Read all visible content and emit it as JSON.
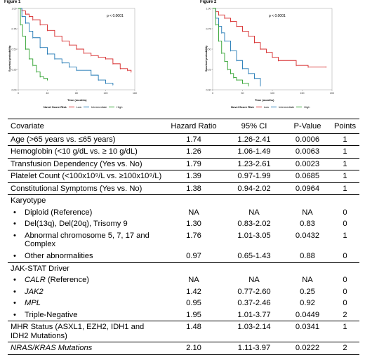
{
  "figures": [
    {
      "title": "Figure 1",
      "p_value": "p < 0.0001",
      "ylabel": "Survival probability",
      "xlabel": "Time (months)",
      "legend_title": "Novel Score Risk",
      "legend": [
        "Low",
        "Intermediate",
        "High"
      ]
    },
    {
      "title": "Figure 2",
      "p_value": "p < 0.0001",
      "ylabel": "Survival probability",
      "xlabel": "Time (months)",
      "legend_title": "Novel Score Risk",
      "legend": [
        "Low",
        "Intermediate",
        "High"
      ]
    }
  ],
  "chart_data": [
    {
      "type": "line",
      "title": "Figure 1",
      "xlabel": "Time (months)",
      "ylabel": "Survival probability",
      "xlim": [
        0,
        160
      ],
      "ylim": [
        0,
        1
      ],
      "x_ticks": [
        "0",
        "40",
        "80",
        "120",
        "160"
      ],
      "y_ticks": [
        "0.00",
        "0.25",
        "0.50",
        "0.75",
        "1.00"
      ],
      "series": [
        {
          "name": "Low",
          "color": "#d62728",
          "x": [
            0,
            5,
            10,
            15,
            20,
            30,
            40,
            50,
            60,
            70,
            80,
            90,
            100,
            110,
            120,
            130,
            140,
            150,
            155
          ],
          "y": [
            1.0,
            0.97,
            0.93,
            0.9,
            0.86,
            0.8,
            0.73,
            0.66,
            0.6,
            0.55,
            0.5,
            0.45,
            0.42,
            0.4,
            0.38,
            0.32,
            0.26,
            0.24,
            0.22
          ]
        },
        {
          "name": "Intermediate",
          "color": "#1f77b4",
          "x": [
            0,
            5,
            10,
            15,
            20,
            30,
            40,
            50,
            60,
            70,
            80,
            100,
            110,
            120,
            130
          ],
          "y": [
            1.0,
            0.9,
            0.82,
            0.72,
            0.64,
            0.52,
            0.44,
            0.38,
            0.33,
            0.28,
            0.24,
            0.18,
            0.12,
            0.08,
            0.06
          ]
        },
        {
          "name": "High",
          "color": "#2ca02c",
          "x": [
            0,
            3,
            6,
            10,
            15,
            20,
            25,
            30,
            35,
            40
          ],
          "y": [
            1.0,
            0.8,
            0.66,
            0.5,
            0.38,
            0.3,
            0.22,
            0.16,
            0.14,
            0.12
          ]
        }
      ]
    },
    {
      "type": "line",
      "title": "Figure 2",
      "xlabel": "Time (months)",
      "ylabel": "Survival probability",
      "xlim": [
        0,
        200
      ],
      "ylim": [
        0,
        1
      ],
      "x_ticks": [
        "0",
        "50",
        "100",
        "150",
        "200"
      ],
      "y_ticks": [
        "0.00",
        "0.25",
        "0.50",
        "0.75",
        "1.00"
      ],
      "series": [
        {
          "name": "Low",
          "color": "#d62728",
          "x": [
            0,
            5,
            10,
            20,
            30,
            40,
            50,
            60,
            70,
            80,
            90,
            100,
            110,
            140,
            160,
            190
          ],
          "y": [
            1.0,
            0.96,
            0.92,
            0.88,
            0.84,
            0.78,
            0.72,
            0.66,
            0.58,
            0.5,
            0.46,
            0.4,
            0.36,
            0.3,
            0.28,
            0.28
          ]
        },
        {
          "name": "Intermediate",
          "color": "#1f77b4",
          "x": [
            0,
            5,
            10,
            15,
            20,
            30,
            40,
            50,
            60,
            70,
            80
          ],
          "y": [
            1.0,
            0.88,
            0.78,
            0.7,
            0.6,
            0.48,
            0.36,
            0.26,
            0.2,
            0.14,
            0.05
          ]
        },
        {
          "name": "High",
          "color": "#2ca02c",
          "x": [
            0,
            5,
            10,
            15,
            20,
            25,
            30,
            35,
            40,
            50,
            60
          ],
          "y": [
            1.0,
            0.8,
            0.6,
            0.45,
            0.35,
            0.25,
            0.2,
            0.15,
            0.12,
            0.08,
            0.05
          ]
        }
      ]
    },
    {
      "type": "table",
      "columns": [
        "Covariate",
        "Hazard Ratio",
        "95% CI",
        "P-Value",
        "Points"
      ],
      "rows": [
        {
          "kind": "main",
          "label": "Age (>65 years vs. ≤65 years)",
          "hr": "1.74",
          "ci": "1.26-2.41",
          "p": "0.0006",
          "pts": "1"
        },
        {
          "kind": "main",
          "label": "Hemoglobin (<10 g/dL vs. ≥ 10 g/dL)",
          "hr": "1.26",
          "ci": "1.06-1.49",
          "p": "0.0063",
          "pts": "1"
        },
        {
          "kind": "main",
          "label": "Transfusion Dependency (Yes vs. No)",
          "hr": "1.79",
          "ci": "1.23-2.61",
          "p": "0.0023",
          "pts": "1"
        },
        {
          "kind": "main",
          "label": "Platelet Count (<100x10⁹/L vs. ≥100x10⁹/L)",
          "hr": "1.39",
          "ci": "0.97-1.99",
          "p": "0.0685",
          "pts": "1"
        },
        {
          "kind": "main",
          "label": "Constitutional Symptoms (Yes vs. No)",
          "hr": "1.38",
          "ci": "0.94-2.02",
          "p": "0.0964",
          "pts": "1"
        },
        {
          "kind": "header",
          "label": "Karyotype",
          "hr": "",
          "ci": "",
          "p": "",
          "pts": ""
        },
        {
          "kind": "sub",
          "label": "Diploid (Reference)",
          "hr": "NA",
          "ci": "NA",
          "p": "NA",
          "pts": "0"
        },
        {
          "kind": "sub",
          "label": "Del(13q), Del(20q), Trisomy 9",
          "hr": "1.30",
          "ci": "0.83-2.02",
          "p": "0.83",
          "pts": "0"
        },
        {
          "kind": "sub",
          "label": "Abnormal chromosome 5, 7, 17 and Complex",
          "hr": "1.76",
          "ci": "1.01-3.05",
          "p": "0.0432",
          "pts": "1"
        },
        {
          "kind": "sub",
          "label": "Other abnormalities",
          "hr": "0.97",
          "ci": "0.65-1.43",
          "p": "0.88",
          "pts": "0"
        },
        {
          "kind": "header",
          "label": "JAK-STAT Driver",
          "hr": "",
          "ci": "",
          "p": "",
          "pts": ""
        },
        {
          "kind": "sub",
          "label": "CALR",
          "suffix": " (Reference)",
          "italic": true,
          "hr": "NA",
          "ci": "NA",
          "p": "NA",
          "pts": "0"
        },
        {
          "kind": "sub",
          "label": "JAK2",
          "suffix": "",
          "italic": true,
          "hr": "1.42",
          "ci": "0.77-2.60",
          "p": "0.25",
          "pts": "0"
        },
        {
          "kind": "sub",
          "label": "MPL",
          "suffix": "",
          "italic": true,
          "hr": "0.95",
          "ci": "0.37-2.46",
          "p": "0.92",
          "pts": "0"
        },
        {
          "kind": "sub",
          "label": "Triple-Negative",
          "hr": "1.95",
          "ci": "1.01-3.77",
          "p": "0.0449",
          "pts": "2"
        },
        {
          "kind": "main",
          "label": "MHR Status (ASXL1, EZH2, IDH1 and IDH2 Mutations)",
          "hr": "1.48",
          "ci": "1.03-2.14",
          "p": "0.0341",
          "pts": "1"
        },
        {
          "kind": "main",
          "label": "NRAS/KRAS Mutations",
          "italic": true,
          "hr": "2.10",
          "ci": "1.11-3.97",
          "p": "0.0222",
          "pts": "2"
        }
      ]
    }
  ]
}
